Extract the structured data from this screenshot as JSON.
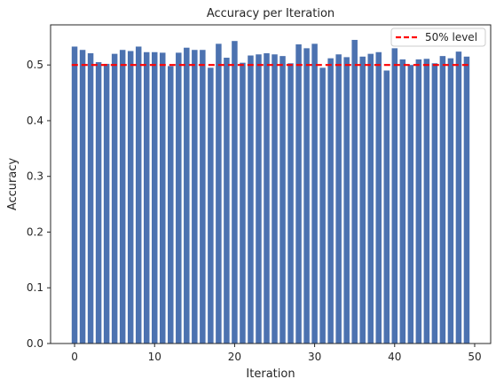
{
  "chart_data": {
    "type": "bar",
    "title": "Accuracy per Iteration",
    "xlabel": "Iteration",
    "ylabel": "Accuracy",
    "xlim": [
      -3,
      52
    ],
    "ylim": [
      0.0,
      0.572
    ],
    "xticks": [
      0,
      10,
      20,
      30,
      40,
      50
    ],
    "yticks": [
      0.0,
      0.1,
      0.2,
      0.3,
      0.4,
      0.5
    ],
    "ytick_labels": [
      "0.0",
      "0.1",
      "0.2",
      "0.3",
      "0.4",
      "0.5"
    ],
    "x": [
      0,
      1,
      2,
      3,
      4,
      5,
      6,
      7,
      8,
      9,
      10,
      11,
      12,
      13,
      14,
      15,
      16,
      17,
      18,
      19,
      20,
      21,
      22,
      23,
      24,
      25,
      26,
      27,
      28,
      29,
      30,
      31,
      32,
      33,
      34,
      35,
      36,
      37,
      38,
      39,
      40,
      41,
      42,
      43,
      44,
      45,
      46,
      47,
      48,
      49
    ],
    "values": [
      0.533,
      0.527,
      0.521,
      0.505,
      0.502,
      0.52,
      0.527,
      0.525,
      0.533,
      0.523,
      0.523,
      0.522,
      0.498,
      0.522,
      0.531,
      0.527,
      0.527,
      0.495,
      0.538,
      0.513,
      0.543,
      0.504,
      0.517,
      0.519,
      0.521,
      0.519,
      0.516,
      0.503,
      0.537,
      0.53,
      0.538,
      0.495,
      0.512,
      0.519,
      0.514,
      0.545,
      0.515,
      0.52,
      0.523,
      0.49,
      0.53,
      0.51,
      0.5,
      0.51,
      0.511,
      0.503,
      0.516,
      0.512,
      0.524,
      0.515
    ],
    "bar_color": "#4c72b0",
    "reference_line": {
      "label": "50% level",
      "y": 0.5,
      "color": "#ff0000",
      "style": "dashed"
    },
    "legend": {
      "placement": "upper right",
      "entries": [
        "50% level"
      ]
    },
    "grid": false
  }
}
